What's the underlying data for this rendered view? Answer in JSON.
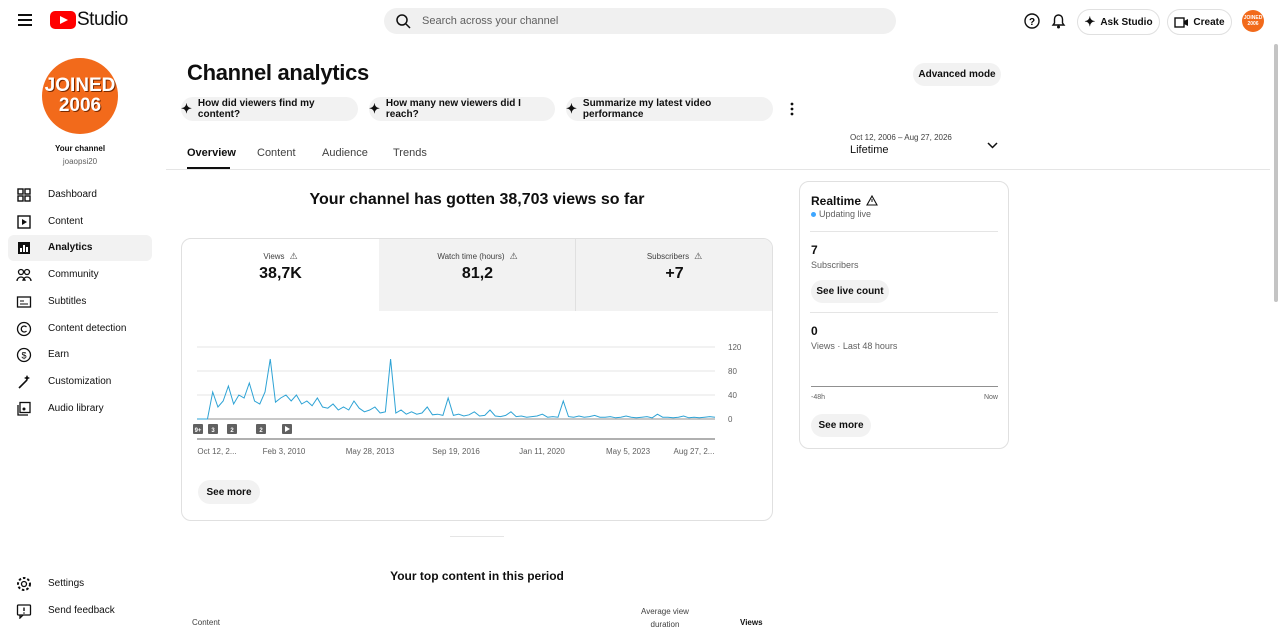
{
  "header": {
    "logo": "Studio",
    "search_placeholder": "Search across your channel",
    "ask": "Ask Studio",
    "create": "Create"
  },
  "sidebar": {
    "avatar_lines": [
      "JOINED",
      "2006"
    ],
    "channel_label": "Your channel",
    "handle": "joaopsi20",
    "nav": [
      "Dashboard",
      "Content",
      "Analytics",
      "Community",
      "Subtitles",
      "Content detection",
      "Earn",
      "Customization",
      "Audio library"
    ],
    "bottom": [
      "Settings",
      "Send feedback"
    ]
  },
  "page": {
    "title": "Channel analytics",
    "advanced": "Advanced mode",
    "prompts": [
      "How did viewers find my content?",
      "How many new viewers did I reach?",
      "Summarize my latest video performance"
    ],
    "tabs": [
      "Overview",
      "Content",
      "Audience",
      "Trends"
    ],
    "date_range": "Oct 12, 2006 – Aug 27, 2026",
    "period": "Lifetime",
    "headline": "Your channel has gotten 38,703 views so far"
  },
  "metrics": [
    {
      "label": "Views",
      "value": "38,7K"
    },
    {
      "label": "Watch time (hours)",
      "value": "81,2"
    },
    {
      "label": "Subscribers",
      "value": "+7"
    }
  ],
  "chart": {
    "type": "line",
    "color": "#2ea3d5",
    "ylim": [
      0,
      120
    ],
    "yticks": [
      0,
      40,
      80,
      120
    ],
    "x_labels": [
      "Oct 12, 2...",
      "Feb 3, 2010",
      "May 28, 2013",
      "Sep 19, 2016",
      "Jan 11, 2020",
      "May 5, 2023",
      "Aug 27, 2..."
    ],
    "markers": [
      "9+",
      "3",
      "2",
      "2"
    ],
    "values": [
      0,
      0,
      0,
      45,
      20,
      30,
      55,
      25,
      40,
      35,
      60,
      30,
      25,
      45,
      100,
      28,
      35,
      40,
      30,
      40,
      25,
      30,
      22,
      35,
      20,
      18,
      25,
      15,
      20,
      15,
      30,
      18,
      12,
      15,
      20,
      10,
      12,
      100,
      10,
      15,
      8,
      12,
      8,
      10,
      20,
      7,
      8,
      6,
      35,
      6,
      8,
      5,
      7,
      12,
      5,
      6,
      15,
      5,
      4,
      6,
      12,
      4,
      5,
      3,
      4,
      5,
      8,
      3,
      4,
      3,
      30,
      4,
      3,
      5,
      3,
      4,
      6,
      3,
      3,
      4,
      2,
      3,
      5,
      3,
      2,
      3,
      4,
      2,
      8,
      3,
      3,
      2,
      3,
      5,
      2,
      3,
      2,
      3,
      4,
      3
    ]
  },
  "see_more": "See more",
  "realtime": {
    "title": "Realtime",
    "status": "Updating live",
    "subscribers": 7,
    "subscribers_label": "Subscribers",
    "live_count": "See live count",
    "views": 0,
    "views_label": "Views · Last 48 hours",
    "start": "-48h",
    "end": "Now",
    "see_more": "See more"
  },
  "top_content": {
    "title": "Your top content in this period",
    "columns": [
      "Content",
      "Average view duration",
      "Views"
    ]
  }
}
